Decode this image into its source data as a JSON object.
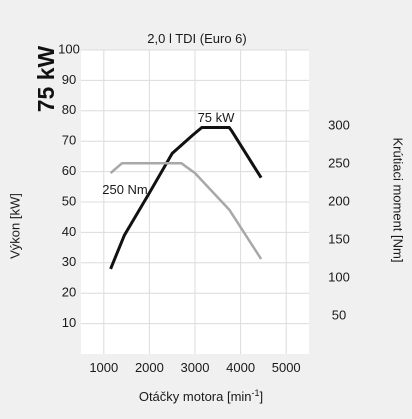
{
  "chart_data": {
    "type": "line",
    "title": "2,0 l TDI (Euro 6)",
    "badge": "75 kW",
    "xlabel": "Otáčky motora [min",
    "xlabel_sup": "-1",
    "xlabel_end": "]",
    "ylabel_left": "Výkon [kW]",
    "ylabel_right": "Krútiaci moment [Nm]",
    "xlim": [
      500,
      5500
    ],
    "xticks": [
      1000,
      2000,
      3000,
      4000,
      5000
    ],
    "y_left_lim": [
      0,
      100
    ],
    "y_left_ticks": [
      10,
      20,
      30,
      40,
      50,
      60,
      70,
      80,
      90,
      100
    ],
    "y_right_lim": [
      0,
      400
    ],
    "y_right_ticks": [
      50,
      100,
      150,
      200,
      250,
      300
    ],
    "grid": true,
    "series": [
      {
        "name": "75 kW",
        "axis": "left",
        "color": "#111111",
        "x": [
          1150,
          1450,
          2000,
          2500,
          2950,
          3150,
          3300,
          3750,
          3800,
          4450
        ],
        "y": [
          28,
          39,
          53,
          66,
          72,
          74.5,
          74.5,
          74.5,
          73.5,
          58
        ]
      },
      {
        "name": "250 Nm",
        "axis": "right",
        "color": "#a8a8a8",
        "x": [
          1150,
          1400,
          2000,
          2700,
          3000,
          3750,
          4450
        ],
        "y": [
          238,
          251,
          251,
          251,
          238,
          190,
          125
        ]
      }
    ],
    "annotations": {
      "power_label": "75 kW",
      "torque_label": "250 Nm"
    }
  }
}
